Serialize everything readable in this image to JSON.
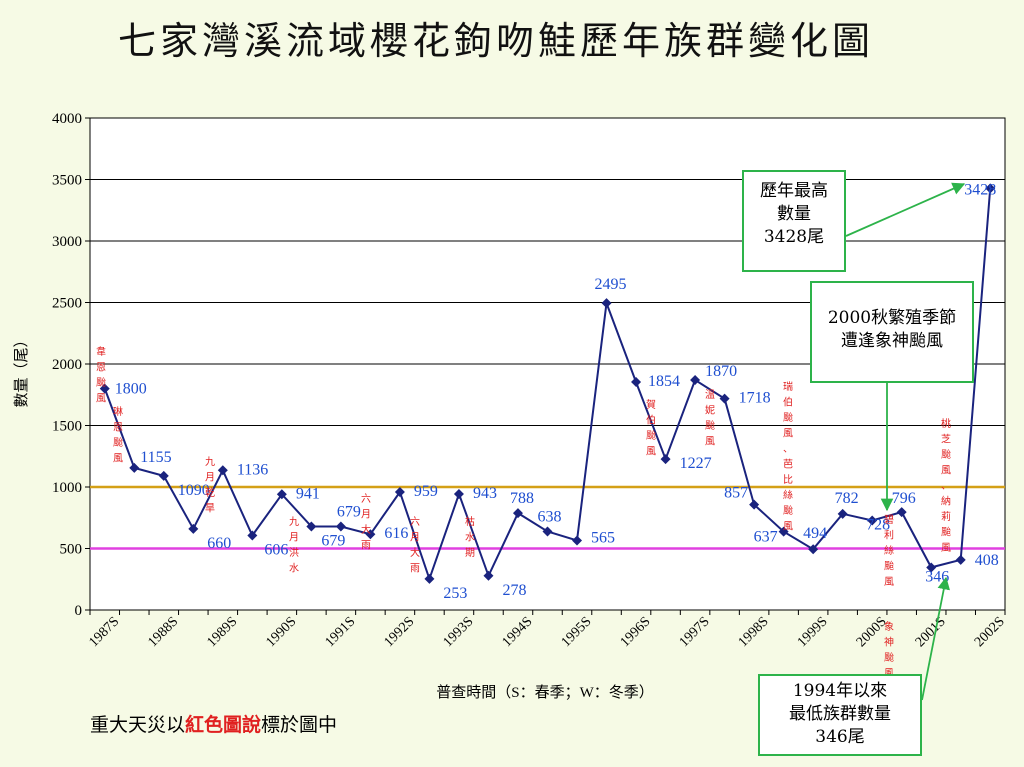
{
  "title": "七家灣溪流域櫻花鉤吻鮭歷年族群變化圖",
  "footnote": {
    "prefix": "重大天災以",
    "highlight": "紅色圖說",
    "suffix": "標於圖中"
  },
  "notes": {
    "max": [
      "歷年最高",
      "數量",
      "3428尾"
    ],
    "typhoon2000": [
      "2000秋繁殖季節",
      "遭逢象神颱風"
    ],
    "min": [
      "1994年以來",
      "最低族群數量",
      "346尾"
    ]
  },
  "colors": {
    "series": "#1A237E",
    "value_label": "#1F4FD0",
    "line_1000": "#D4A017",
    "line_500": "#E040E0",
    "annotation": "#E02020",
    "arrow": "#2DB34A",
    "background": "#F6FAE5",
    "plot_background": "#FFFFFF"
  },
  "chart_data": {
    "type": "line",
    "title": "七家灣溪流域櫻花鉤吻鮭歷年族群變化圖",
    "xlabel": "普查時間（S：春季；W：冬季）",
    "ylabel": "數量（尾）",
    "ylim": [
      0,
      4000
    ],
    "yticks": [
      0,
      500,
      1000,
      1500,
      2000,
      2500,
      3000,
      3500,
      4000
    ],
    "grid": true,
    "xtick_labels": [
      "1987S",
      "1988S",
      "1989S",
      "1990S",
      "1991S",
      "1992S",
      "1993S",
      "1994S",
      "1995S",
      "1996S",
      "1997S",
      "1998S",
      "1999S",
      "2000S",
      "2001S",
      "2002S"
    ],
    "reference_lines": [
      1000,
      500
    ],
    "series": [
      {
        "values": [
          1800,
          1155,
          1090,
          660,
          1136,
          606,
          941,
          679,
          679,
          616,
          959,
          253,
          943,
          278,
          788,
          638,
          565,
          2495,
          1854,
          1227,
          1870,
          1718,
          857,
          637,
          494,
          782,
          728,
          796,
          346,
          408,
          3428
        ],
        "labels": [
          "1800",
          "1155",
          "1090",
          "660",
          "1136",
          "606",
          "941",
          "679",
          "679",
          "616",
          "959",
          "253",
          "943",
          "278",
          "788",
          "638",
          "565",
          "2495",
          "1854",
          "1227",
          "1870",
          "1718",
          "857",
          "637",
          "494",
          "782",
          "728",
          "796",
          "346",
          "408",
          "3428"
        ]
      }
    ],
    "annotations": [
      {
        "text": "韋恩颱風",
        "index": 0
      },
      {
        "text": "琳恩颱風",
        "index": 1
      },
      {
        "text": "九月乾旱",
        "index": 4
      },
      {
        "text": "九月洪水",
        "index": 7
      },
      {
        "text": "六月大雨",
        "index": 9
      },
      {
        "text": "六月大雨",
        "index": 11
      },
      {
        "text": "枯水期",
        "index": 13
      },
      {
        "text": "賀伯颱風",
        "index": 19
      },
      {
        "text": "溫妮颱風",
        "index": 21
      },
      {
        "text": "瑞伯颱風、芭比絲颱風",
        "index": 24
      },
      {
        "text": "碧利絲颱風",
        "index": 27
      },
      {
        "text": "象神颱風",
        "index": 27
      },
      {
        "text": "桃芝颱風、納莉颱風",
        "index": 29
      }
    ]
  }
}
